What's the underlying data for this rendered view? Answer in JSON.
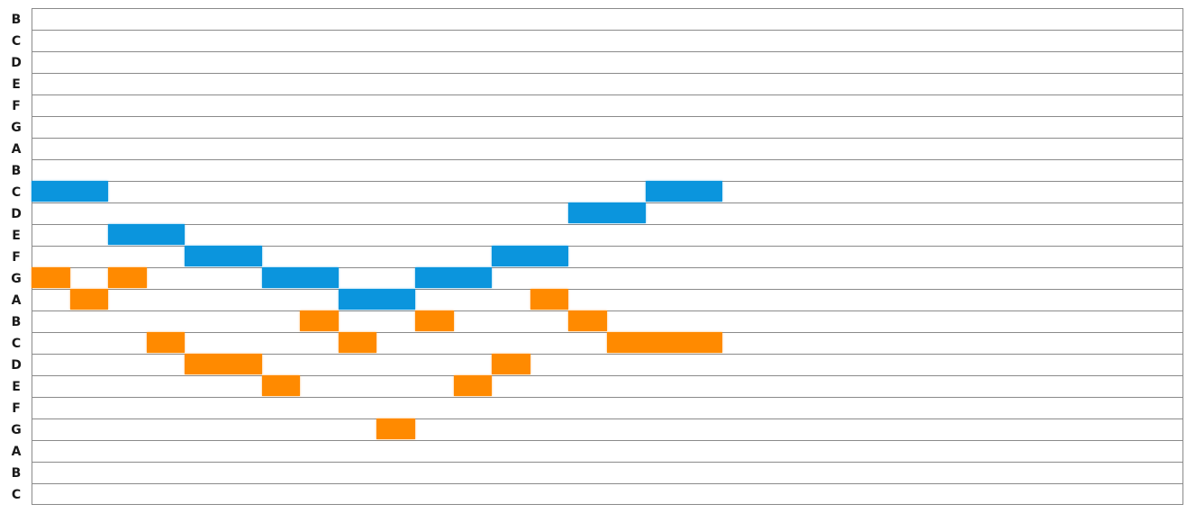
{
  "rows": [
    "B",
    "C",
    "D",
    "E",
    "F",
    "G",
    "A",
    "B",
    "C",
    "D",
    "E",
    "F",
    "G",
    "A",
    "B",
    "C",
    "D",
    "E",
    "F",
    "G",
    "A",
    "B",
    "C"
  ],
  "colors": {
    "blue": "#0b95dd",
    "orange": "#ff8a00",
    "grid": "#8a8a8a"
  },
  "notes": [
    {
      "voice": "blue",
      "row": 8,
      "start": 0,
      "length": 2
    },
    {
      "voice": "blue",
      "row": 10,
      "start": 2,
      "length": 2
    },
    {
      "voice": "blue",
      "row": 11,
      "start": 4,
      "length": 2
    },
    {
      "voice": "blue",
      "row": 12,
      "start": 6,
      "length": 2
    },
    {
      "voice": "blue",
      "row": 13,
      "start": 8,
      "length": 2
    },
    {
      "voice": "blue",
      "row": 12,
      "start": 10,
      "length": 2
    },
    {
      "voice": "blue",
      "row": 11,
      "start": 12,
      "length": 2
    },
    {
      "voice": "blue",
      "row": 9,
      "start": 14,
      "length": 2
    },
    {
      "voice": "blue",
      "row": 8,
      "start": 16,
      "length": 2
    },
    {
      "voice": "orange",
      "row": 12,
      "start": 0,
      "length": 1
    },
    {
      "voice": "orange",
      "row": 13,
      "start": 1,
      "length": 1
    },
    {
      "voice": "orange",
      "row": 12,
      "start": 2,
      "length": 1
    },
    {
      "voice": "orange",
      "row": 15,
      "start": 3,
      "length": 1
    },
    {
      "voice": "orange",
      "row": 16,
      "start": 4,
      "length": 2
    },
    {
      "voice": "orange",
      "row": 17,
      "start": 6,
      "length": 1
    },
    {
      "voice": "orange",
      "row": 14,
      "start": 7,
      "length": 1
    },
    {
      "voice": "orange",
      "row": 15,
      "start": 8,
      "length": 1
    },
    {
      "voice": "orange",
      "row": 19,
      "start": 9,
      "length": 1
    },
    {
      "voice": "orange",
      "row": 14,
      "start": 10,
      "length": 1
    },
    {
      "voice": "orange",
      "row": 17,
      "start": 11,
      "length": 1
    },
    {
      "voice": "orange",
      "row": 16,
      "start": 12,
      "length": 1
    },
    {
      "voice": "orange",
      "row": 13,
      "start": 13,
      "length": 1
    },
    {
      "voice": "orange",
      "row": 14,
      "start": 14,
      "length": 1
    },
    {
      "voice": "orange",
      "row": 15,
      "start": 15,
      "length": 3
    }
  ]
}
